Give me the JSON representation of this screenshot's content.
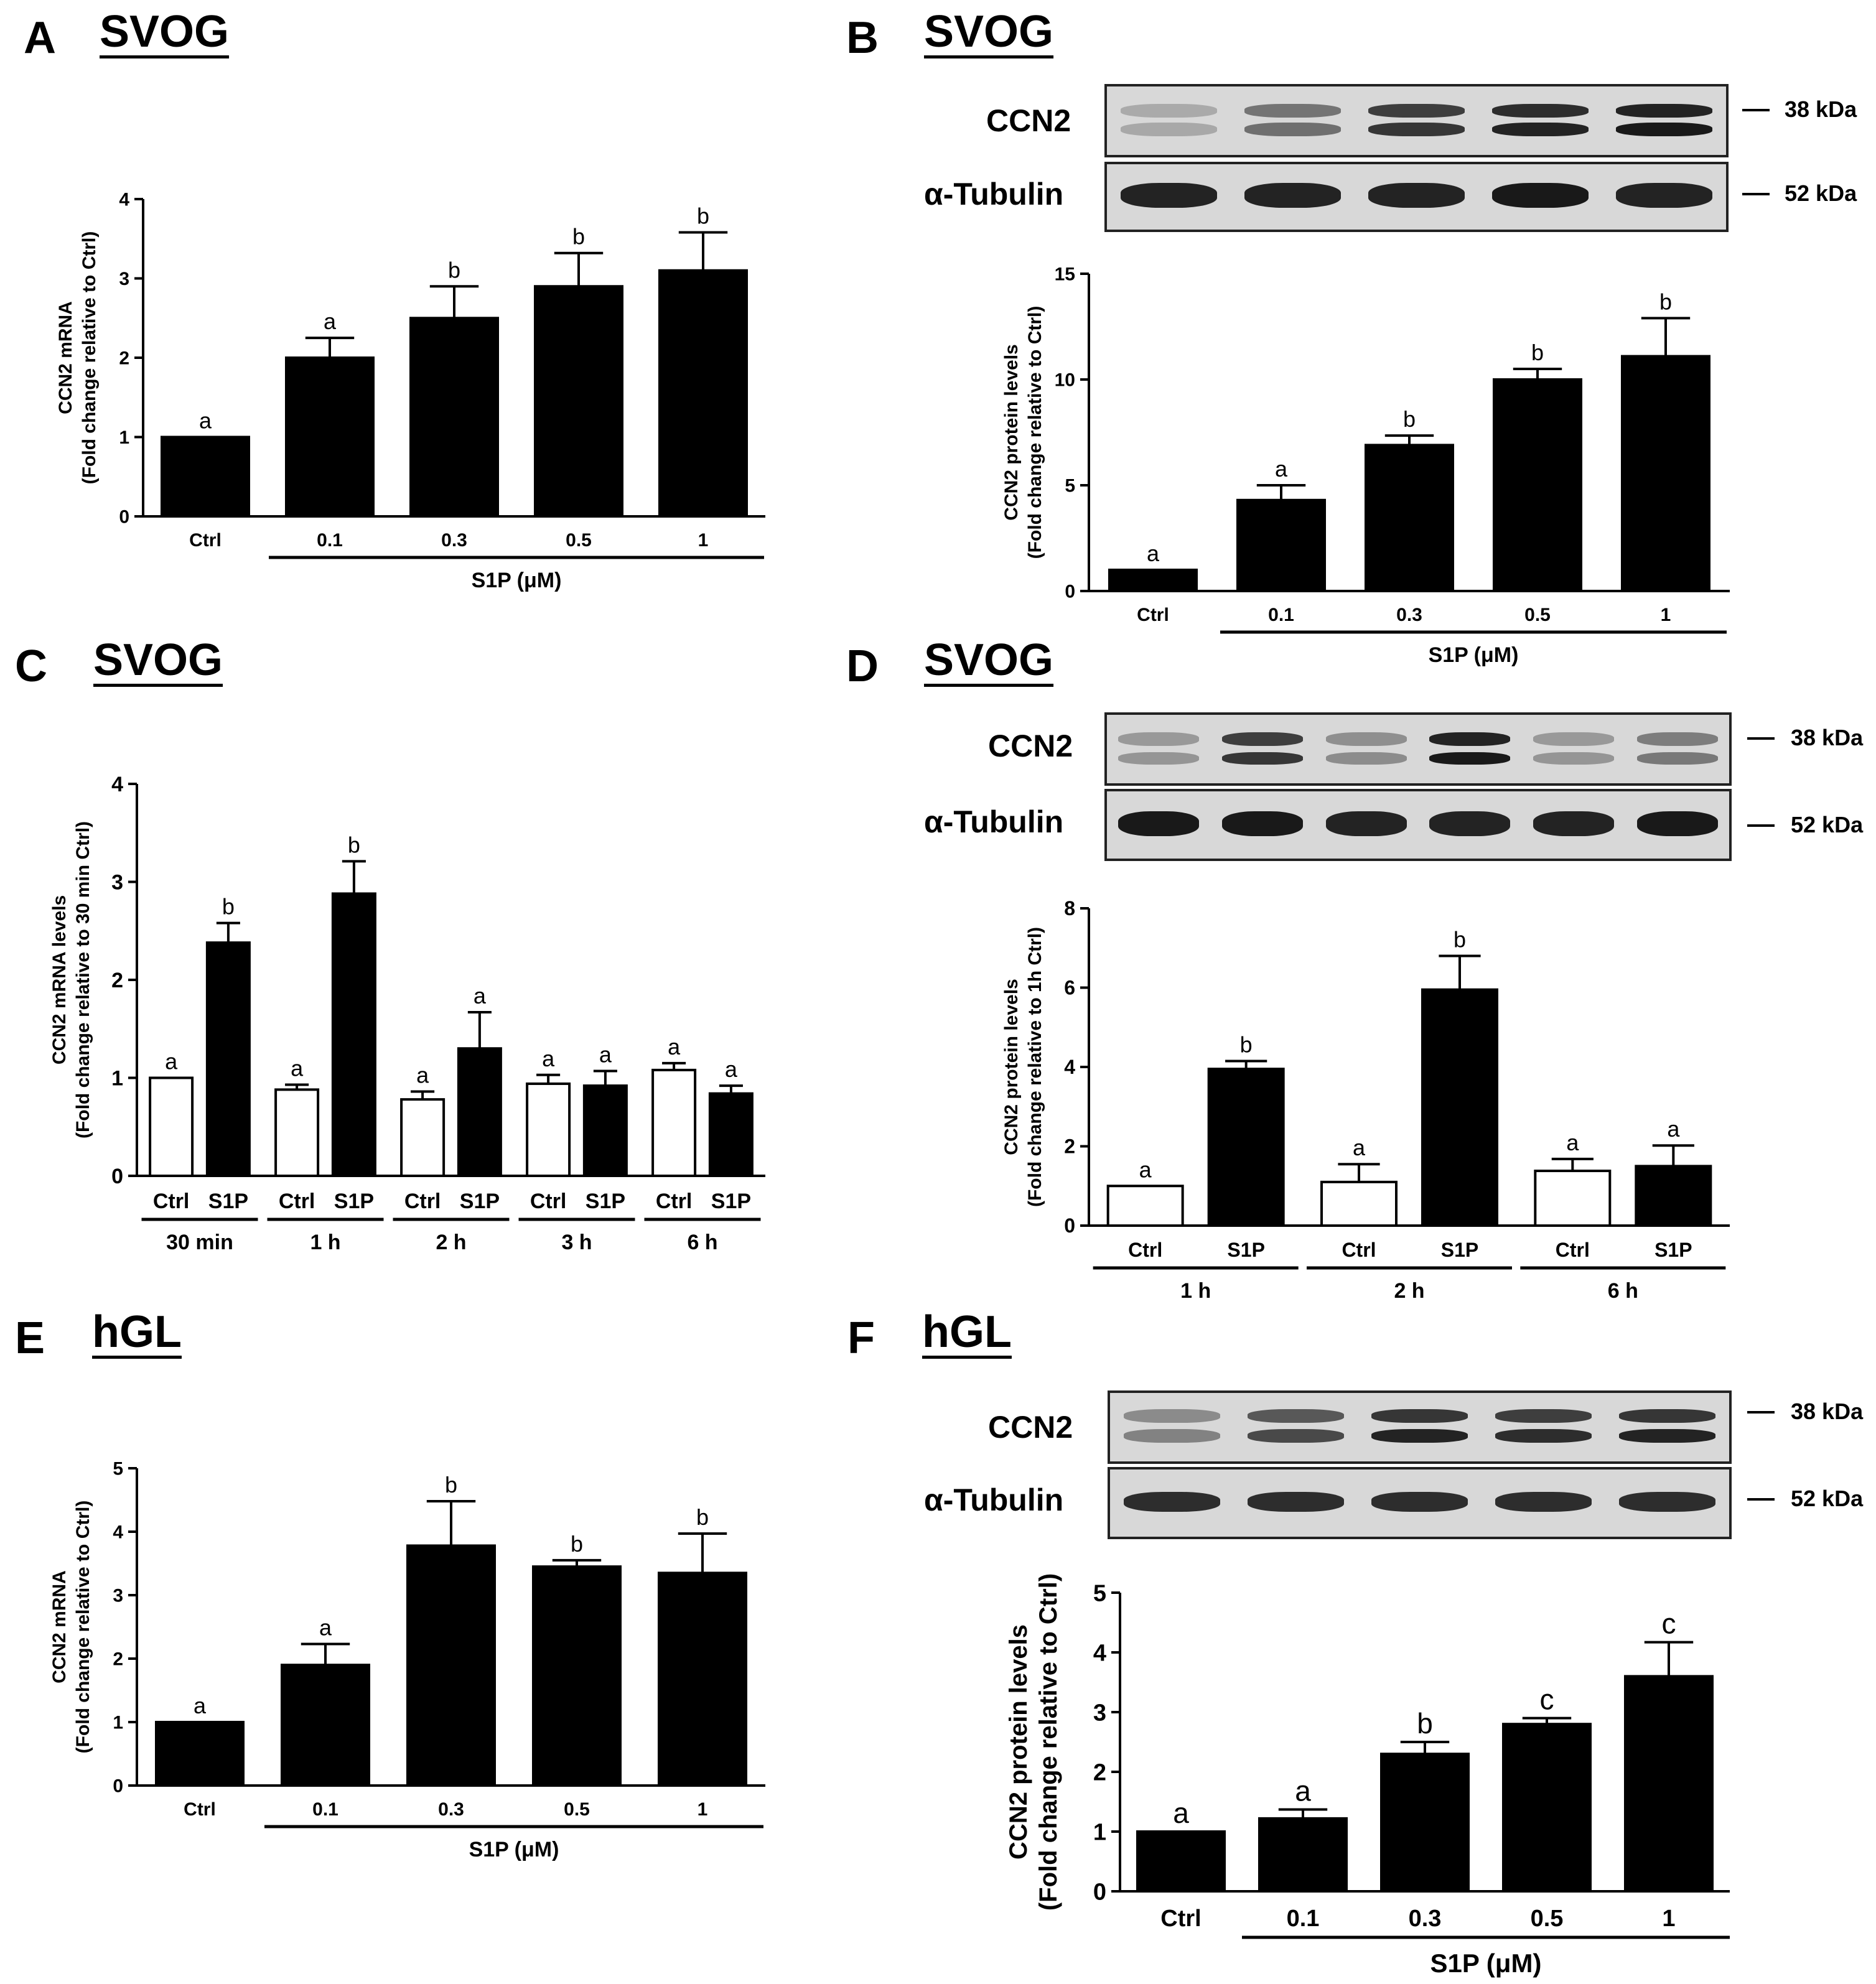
{
  "panels": {
    "A": {
      "letter": "A",
      "cell": "SVOG"
    },
    "B": {
      "letter": "B",
      "cell": "SVOG",
      "blot": {
        "rows": [
          {
            "label": "CCN2",
            "kda": "38 kDa"
          },
          {
            "label": "α-Tubulin",
            "kda": "52 kDa"
          }
        ]
      }
    },
    "C": {
      "letter": "C",
      "cell": "SVOG"
    },
    "D": {
      "letter": "D",
      "cell": "SVOG",
      "blot": {
        "rows": [
          {
            "label": "CCN2",
            "kda": "38 kDa"
          },
          {
            "label": "α-Tubulin",
            "kda": "52 kDa"
          }
        ]
      }
    },
    "E": {
      "letter": "E",
      "cell": "hGL"
    },
    "F": {
      "letter": "F",
      "cell": "hGL",
      "blot": {
        "rows": [
          {
            "label": "CCN2",
            "kda": "38 kDa"
          },
          {
            "label": "α-Tubulin",
            "kda": "52 kDa"
          }
        ]
      }
    }
  },
  "chart_data": [
    {
      "id": "A",
      "type": "bar",
      "ylabel": [
        "CCN2 mRNA",
        "(Fold change relative to Ctrl)"
      ],
      "ylim": [
        0,
        4
      ],
      "yticks": [
        "0",
        "1",
        "2",
        "3",
        "4"
      ],
      "categories": [
        "Ctrl",
        "0.1",
        "0.3",
        "0.5",
        "1"
      ],
      "values": [
        1.0,
        2.0,
        2.5,
        2.9,
        3.1
      ],
      "errors": [
        0,
        0.25,
        0.4,
        0.42,
        0.48
      ],
      "letters": [
        "a",
        "a",
        "b",
        "b",
        "b"
      ],
      "fills": [
        "black",
        "black",
        "black",
        "black",
        "black"
      ],
      "groups": [
        {
          "label": "S1P (μM)",
          "from": 1,
          "to": 4
        }
      ]
    },
    {
      "id": "B",
      "type": "bar",
      "ylabel": [
        "CCN2 protein levels",
        "(Fold change relative to Ctrl)"
      ],
      "ylim": [
        0,
        15
      ],
      "yticks": [
        "0",
        "5",
        "10",
        "15"
      ],
      "categories": [
        "Ctrl",
        "0.1",
        "0.3",
        "0.5",
        "1"
      ],
      "values": [
        1.0,
        4.3,
        6.9,
        10.0,
        11.1
      ],
      "errors": [
        0,
        0.7,
        0.45,
        0.5,
        1.8
      ],
      "letters": [
        "a",
        "a",
        "b",
        "b",
        "b"
      ],
      "fills": [
        "black",
        "black",
        "black",
        "black",
        "black"
      ],
      "groups": [
        {
          "label": "S1P (μM)",
          "from": 1,
          "to": 4
        }
      ]
    },
    {
      "id": "C",
      "type": "bar",
      "ylabel": [
        "CCN2 mRNA levels",
        "(Fold change relative to 30 min Ctrl)"
      ],
      "ylim": [
        0,
        4
      ],
      "yticks": [
        "0",
        "1",
        "2",
        "3",
        "4"
      ],
      "categories": [
        "Ctrl",
        "S1P",
        "Ctrl",
        "S1P",
        "Ctrl",
        "S1P",
        "Ctrl",
        "S1P",
        "Ctrl",
        "S1P"
      ],
      "values": [
        1.0,
        2.38,
        0.88,
        2.88,
        0.78,
        1.3,
        0.94,
        0.92,
        1.08,
        0.84
      ],
      "errors": [
        0,
        0.2,
        0.05,
        0.33,
        0.08,
        0.37,
        0.09,
        0.15,
        0.07,
        0.08
      ],
      "letters": [
        "a",
        "b",
        "a",
        "b",
        "a",
        "a",
        "a",
        "a",
        "a",
        "a"
      ],
      "fills": [
        "white",
        "black",
        "white",
        "black",
        "white",
        "black",
        "white",
        "black",
        "white",
        "black"
      ],
      "groups": [
        {
          "label": "30 min",
          "from": 0,
          "to": 1
        },
        {
          "label": "1 h",
          "from": 2,
          "to": 3
        },
        {
          "label": "2 h",
          "from": 4,
          "to": 5
        },
        {
          "label": "3 h",
          "from": 6,
          "to": 7
        },
        {
          "label": "6 h",
          "from": 8,
          "to": 9
        }
      ]
    },
    {
      "id": "D",
      "type": "bar",
      "ylabel": [
        "CCN2 protein levels",
        "(Fold change relative to 1h Ctrl)"
      ],
      "ylim": [
        0,
        8
      ],
      "yticks": [
        "0",
        "2",
        "4",
        "6",
        "8"
      ],
      "categories": [
        "Ctrl",
        "S1P",
        "Ctrl",
        "S1P",
        "Ctrl",
        "S1P"
      ],
      "values": [
        1.0,
        3.95,
        1.1,
        5.95,
        1.38,
        1.5
      ],
      "errors": [
        0,
        0.2,
        0.45,
        0.85,
        0.3,
        0.52
      ],
      "letters": [
        "a",
        "b",
        "a",
        "b",
        "a",
        "a"
      ],
      "fills": [
        "white",
        "black",
        "white",
        "black",
        "white",
        "black"
      ],
      "groups": [
        {
          "label": "1 h",
          "from": 0,
          "to": 1
        },
        {
          "label": "2 h",
          "from": 2,
          "to": 3
        },
        {
          "label": "6 h",
          "from": 4,
          "to": 5
        }
      ]
    },
    {
      "id": "E",
      "type": "bar",
      "ylabel": [
        "CCN2 mRNA",
        "(Fold change relative to Ctrl)"
      ],
      "ylim": [
        0,
        5
      ],
      "yticks": [
        "0",
        "1",
        "2",
        "3",
        "4",
        "5"
      ],
      "categories": [
        "Ctrl",
        "0.1",
        "0.3",
        "0.5",
        "1"
      ],
      "values": [
        1.0,
        1.9,
        3.78,
        3.45,
        3.35
      ],
      "errors": [
        0,
        0.33,
        0.7,
        0.1,
        0.62
      ],
      "letters": [
        "a",
        "a",
        "b",
        "b",
        "b"
      ],
      "fills": [
        "black",
        "black",
        "black",
        "black",
        "black"
      ],
      "groups": [
        {
          "label": "S1P (μM)",
          "from": 1,
          "to": 4
        }
      ]
    },
    {
      "id": "F",
      "type": "bar",
      "ylabel": [
        "CCN2 protein levels",
        "(Fold change relative to Ctrl)"
      ],
      "ylim": [
        0,
        5
      ],
      "yticks": [
        "0",
        "1",
        "2",
        "3",
        "4",
        "5"
      ],
      "categories": [
        "Ctrl",
        "0.1",
        "0.3",
        "0.5",
        "1"
      ],
      "values": [
        1.0,
        1.22,
        2.3,
        2.8,
        3.6
      ],
      "errors": [
        0,
        0.15,
        0.2,
        0.1,
        0.57
      ],
      "letters": [
        "a",
        "a",
        "b",
        "c",
        "c"
      ],
      "fills": [
        "black",
        "black",
        "black",
        "black",
        "black"
      ],
      "groups": [
        {
          "label": "S1P (μM)",
          "from": 1,
          "to": 4
        }
      ]
    }
  ]
}
